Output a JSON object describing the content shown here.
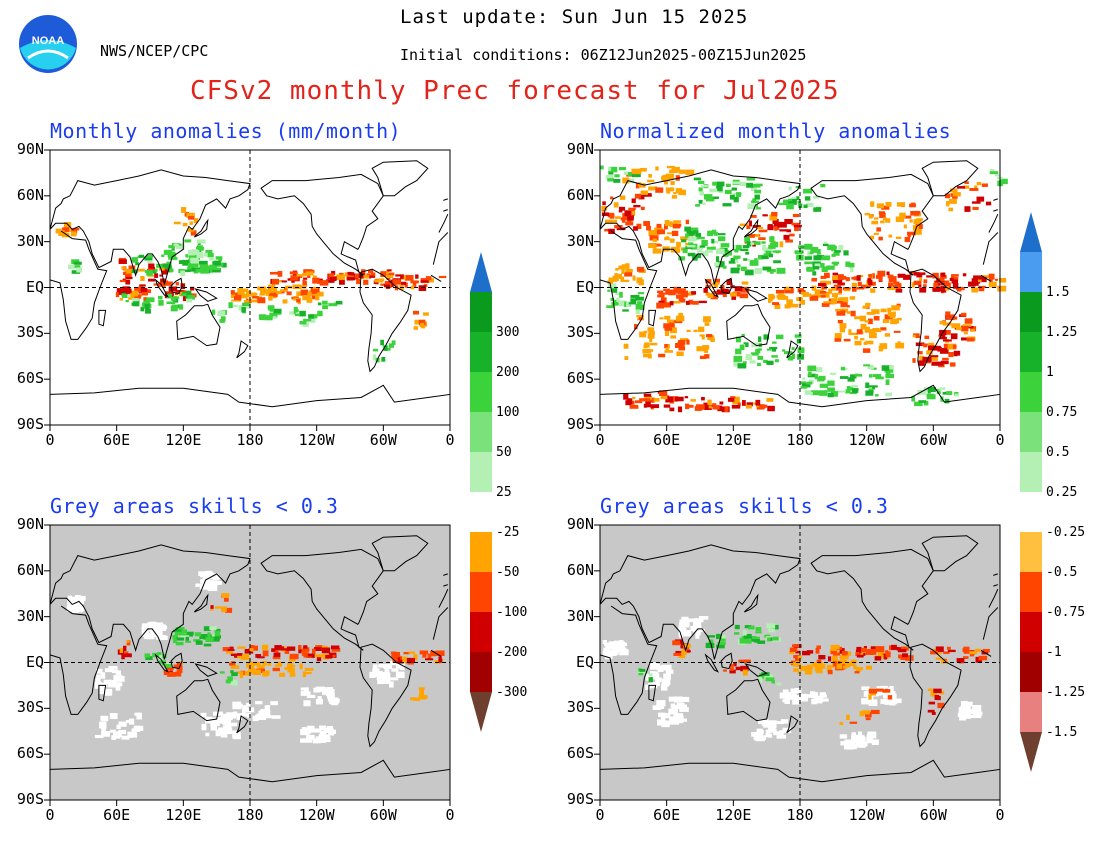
{
  "header": {
    "last_update": "Last update: Sun Jun 15 2025",
    "agency": "NWS/NCEP/CPC",
    "initial_conditions": "Initial conditions: 06Z12Jun2025-00Z15Jun2025",
    "title": "CFSv2 monthly Prec forecast for Jul2025",
    "logo_text": "NOAA"
  },
  "panels": [
    {
      "title": "Monthly anomalies (mm/month)",
      "type": "anomaly",
      "grey_mask": false
    },
    {
      "title": "Normalized monthly anomalies",
      "type": "normalized",
      "grey_mask": false
    },
    {
      "title": "Grey areas skills < 0.3",
      "type": "anomaly",
      "grey_mask": true
    },
    {
      "title": "Grey areas skills < 0.3",
      "type": "normalized",
      "grey_mask": true
    }
  ],
  "axes": {
    "lat_labels": [
      "90N",
      "60N",
      "30N",
      "EQ",
      "30S",
      "60S",
      "90S"
    ],
    "lon_labels": [
      "0",
      "60E",
      "120E",
      "180",
      "120W",
      "60W",
      "0"
    ]
  },
  "colorbars": {
    "anomaly": {
      "labels": [
        "300",
        "200",
        "100",
        "50",
        "25",
        "-25",
        "-50",
        "-100",
        "-200",
        "-300"
      ],
      "top_arrow_color": "#1e6ecc",
      "bottom_arrow_color": "#6e3f2e",
      "colors": [
        "#0a9a1e",
        "#17b22a",
        "#3cd23c",
        "#7be27b",
        "#b4f0b4",
        "#ffffff",
        "#ffa400",
        "#ff4500",
        "#d00000",
        "#a00000",
        "#6e3f2e"
      ]
    },
    "normalized": {
      "labels": [
        "1.5",
        "1.25",
        "1",
        "0.75",
        "0.5",
        "0.25",
        "-0.25",
        "-0.5",
        "-0.75",
        "-1",
        "-1.25",
        "-1.5"
      ],
      "top_arrow_color": "#1e6ecc",
      "bottom_arrow_color": "#6e3f2e",
      "colors": [
        "#4a9cf0",
        "#0a9a1e",
        "#17b22a",
        "#3cd23c",
        "#7be27b",
        "#b4f0b4",
        "#ffffff",
        "#ffbf3f",
        "#ff4500",
        "#d00000",
        "#a00000",
        "#e88080",
        "#6e3f2e"
      ]
    }
  },
  "colors": {
    "title_red": "#e2231a",
    "panel_title_blue": "#1a3cf0",
    "grey_mask": "#c8c8c8",
    "wet": "#3cd23c",
    "dry": "#ff4500",
    "orange": "#ffa400"
  }
}
